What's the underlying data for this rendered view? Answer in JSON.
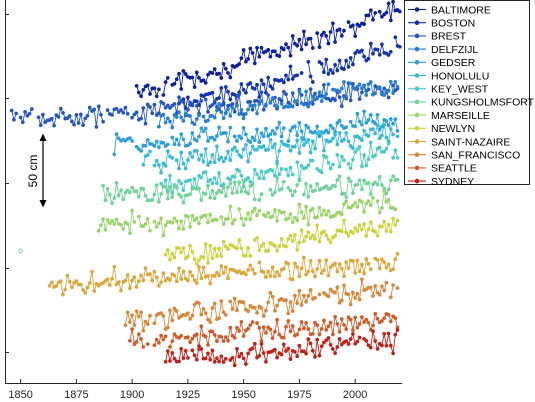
{
  "chart_data": {
    "type": "line",
    "title": "",
    "xlabel": "",
    "ylabel": "",
    "xlim": [
      1843,
      2021
    ],
    "x_ticks": [
      1850,
      1875,
      1900,
      1925,
      1950,
      1975,
      2000
    ],
    "x_tick_labels": [
      "1850",
      "1875",
      "1900",
      "1925",
      "1950",
      "1975",
      "2000"
    ],
    "grid": false,
    "y_tick_labels_shown": false,
    "legend_position": "top-right",
    "marker": "circle",
    "scale_bar": {
      "label": "50 cm",
      "length_cm": 50
    },
    "series": [
      {
        "name": "BALTIMORE",
        "color": "#0b1fa0",
        "start_year": 1902,
        "end_year": 2020,
        "start_level": 53,
        "end_level": 103
      },
      {
        "name": "BOSTON",
        "color": "#1231b2",
        "start_year": 1921,
        "end_year": 2020,
        "start_level": 45,
        "end_level": 83
      },
      {
        "name": "BREST",
        "color": "#2454c4",
        "start_year": 1846,
        "end_year": 2019,
        "start_level": 37,
        "end_level": 55
      },
      {
        "name": "DELFZIJL",
        "color": "#2a7ed0",
        "start_year": 1912,
        "end_year": 2019,
        "start_level": 36,
        "end_level": 59
      },
      {
        "name": "GEDSER",
        "color": "#2e9ed8",
        "start_year": 1892,
        "end_year": 2019,
        "start_level": 22,
        "end_level": 38
      },
      {
        "name": "HONOLULU",
        "color": "#38b9d4",
        "start_year": 1905,
        "end_year": 2019,
        "start_level": 12,
        "end_level": 30
      },
      {
        "name": "KEY_WEST",
        "color": "#4ccbc2",
        "start_year": 1913,
        "end_year": 2019,
        "start_level": -3,
        "end_level": 20
      },
      {
        "name": "KUNGSHOLMSFORT",
        "color": "#70d29c",
        "start_year": 1887,
        "end_year": 2019,
        "start_level": -8,
        "end_level": 0
      },
      {
        "name": "MARSEILLE",
        "color": "#9ad36c",
        "start_year": 1885,
        "end_year": 2018,
        "start_level": -26,
        "end_level": -12
      },
      {
        "name": "NEWLYN",
        "color": "#cdd23e",
        "start_year": 1915,
        "end_year": 2019,
        "start_level": -44,
        "end_level": -24
      },
      {
        "name": "SAINT-NAZAIRE",
        "color": "#dba73a",
        "start_year": 1863,
        "end_year": 2019,
        "start_level": -60,
        "end_level": -46
      },
      {
        "name": "SAN_FRANCISCO",
        "color": "#d6883a",
        "start_year": 1897,
        "end_year": 2019,
        "start_level": -81,
        "end_level": -62
      },
      {
        "name": "SEATTLE",
        "color": "#cf5b28",
        "start_year": 1899,
        "end_year": 2019,
        "start_level": -94,
        "end_level": -80
      },
      {
        "name": "SYDNEY",
        "color": "#c02018",
        "start_year": 1915,
        "end_year": 2019,
        "start_level": -104,
        "end_level": -93
      }
    ],
    "outliers": [
      {
        "series": "KUNGSHOLMSFORT",
        "x": 1850,
        "y": -40
      }
    ]
  }
}
